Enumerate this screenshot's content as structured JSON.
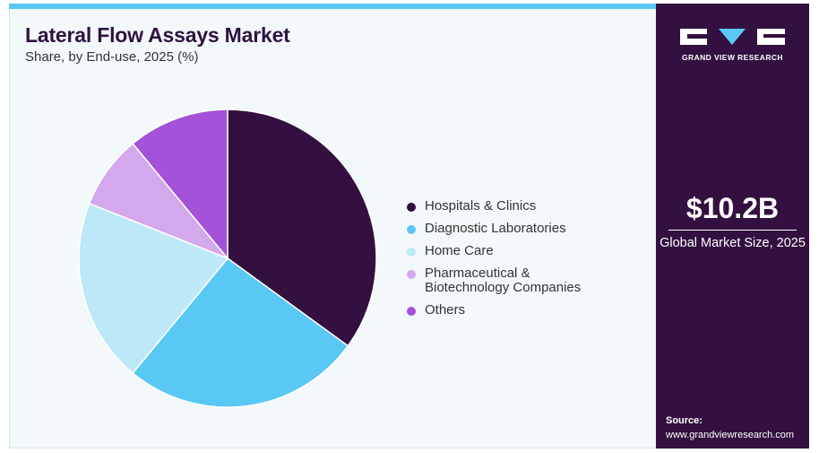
{
  "header": {
    "title": "Lateral Flow Assays Market",
    "subtitle": "Share, by End-use, 2025 (%)"
  },
  "chart_data": {
    "type": "pie",
    "title": "Lateral Flow Assays Market",
    "subtitle": "Share, by End-use, 2025 (%)",
    "categories": [
      "Hospitals & Clinics",
      "Diagnostic Laboratories",
      "Home Care",
      "Pharmaceutical & Biotechnology Companies",
      "Others"
    ],
    "values": [
      35,
      26,
      20,
      8,
      11
    ],
    "colors": [
      "#33103f",
      "#5ac8f5",
      "#bde8f8",
      "#d4a8ec",
      "#a352d9"
    ],
    "legend": "right"
  },
  "legend": [
    {
      "label": "Hospitals & Clinics",
      "color": "#33103f"
    },
    {
      "label": "Diagnostic Laboratories",
      "color": "#5ac8f5"
    },
    {
      "label": "Home Care",
      "color": "#bde8f8"
    },
    {
      "label": "Pharmaceutical & Biotechnology Companies",
      "color": "#d4a8ec"
    },
    {
      "label": "Others",
      "color": "#a352d9"
    }
  ],
  "sidebar": {
    "brand": "GRAND VIEW RESEARCH",
    "market_value": "$10.2B",
    "market_label": "Global Market Size, 2025",
    "source_label": "Source:",
    "source_url": "www.grandviewresearch.com"
  },
  "colors": {
    "accent": "#5ac8f5",
    "brand_dark": "#33103f",
    "title": "#2e1341"
  }
}
